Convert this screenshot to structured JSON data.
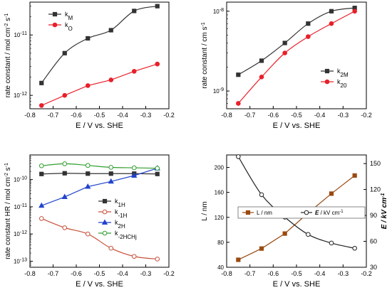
{
  "chart_data": [
    {
      "type": "line",
      "xlabel": "E / V vs. SHE",
      "ylabel": "rate constant / mol cm-2 s-1",
      "yscale": "log",
      "xlim": [
        -0.8,
        -0.2
      ],
      "ylim": [
        6e-13,
        3.5e-11
      ],
      "xticks": [
        -0.8,
        -0.7,
        -0.6,
        -0.5,
        -0.4,
        -0.3,
        -0.2
      ],
      "yticks": [
        1e-12,
        1e-11
      ],
      "legend": "top-left",
      "series": [
        {
          "name": "kM",
          "color": "#333333",
          "marker": "square",
          "smooth": true,
          "x": [
            -0.75,
            -0.65,
            -0.55,
            -0.45,
            -0.35,
            -0.25
          ],
          "y": [
            1.6e-12,
            5e-12,
            8.8e-12,
            1.2e-11,
            2.5e-11,
            3e-11
          ]
        },
        {
          "name": "kO",
          "color": "#e8202a",
          "marker": "circle",
          "smooth": false,
          "x": [
            -0.75,
            -0.65,
            -0.55,
            -0.45,
            -0.35,
            -0.25
          ],
          "y": [
            6.8e-13,
            1e-12,
            1.45e-12,
            1.8e-12,
            2.5e-12,
            3.3e-12
          ]
        }
      ]
    },
    {
      "type": "line",
      "xlabel": "E / V vs. SHE",
      "ylabel": "rate constant  / cm s-1",
      "yscale": "log",
      "xlim": [
        -0.8,
        -0.2
      ],
      "ylim": [
        6e-10,
        1.3e-08
      ],
      "xticks": [
        -0.8,
        -0.7,
        -0.6,
        -0.5,
        -0.4,
        -0.3,
        -0.2
      ],
      "yticks": [
        1e-09,
        1e-08
      ],
      "legend": "bottom-right",
      "series": [
        {
          "name": "k2M",
          "color": "#333333",
          "marker": "square",
          "smooth": true,
          "x": [
            -0.75,
            -0.65,
            -0.55,
            -0.45,
            -0.35,
            -0.25
          ],
          "y": [
            1.6e-09,
            2.4e-09,
            4e-09,
            7e-09,
            1e-08,
            1.1e-08
          ]
        },
        {
          "name": "k20",
          "color": "#e8202a",
          "marker": "circle",
          "smooth": true,
          "x": [
            -0.75,
            -0.65,
            -0.55,
            -0.45,
            -0.35,
            -0.25
          ],
          "y": [
            7e-10,
            1.5e-09,
            3e-09,
            4.8e-09,
            7e-09,
            1e-08
          ]
        }
      ]
    },
    {
      "type": "line",
      "xlabel": "E / V vs. SHE",
      "ylabel": "rate constant HR / mol cm-2 s-1",
      "yscale": "log",
      "xlim": [
        -0.8,
        -0.2
      ],
      "ylim": [
        6e-14,
        8e-10
      ],
      "xticks": [
        -0.8,
        -0.7,
        -0.6,
        -0.5,
        -0.4,
        -0.3,
        -0.2
      ],
      "yticks": [
        1e-13,
        1e-12,
        1e-11,
        1e-10
      ],
      "legend": "right",
      "series": [
        {
          "name": "k1H",
          "color": "#333333",
          "marker": "square",
          "smooth": false,
          "x": [
            -0.75,
            -0.65,
            -0.55,
            -0.45,
            -0.35,
            -0.25
          ],
          "y": [
            1.6e-10,
            1.7e-10,
            1.65e-10,
            1.65e-10,
            1.65e-10,
            1.6e-10
          ]
        },
        {
          "name": "k-1H",
          "color": "#c8503a",
          "marker": "circle-open",
          "smooth": true,
          "x": [
            -0.75,
            -0.65,
            -0.55,
            -0.45,
            -0.35,
            -0.25
          ],
          "y": [
            3.7e-12,
            1.7e-12,
            1e-12,
            3e-13,
            1.5e-13,
            1.2e-13
          ]
        },
        {
          "name": "k2H",
          "color": "#2244cc",
          "marker": "triangle",
          "smooth": false,
          "x": [
            -0.75,
            -0.65,
            -0.55,
            -0.45,
            -0.35,
            -0.25
          ],
          "y": [
            1.1e-11,
            2.3e-11,
            5.5e-11,
            8.5e-11,
            1.4e-10,
            2.6e-10
          ]
        },
        {
          "name": "k-2HCHj",
          "color": "#2e9e2e",
          "marker": "circle-open",
          "smooth": true,
          "x": [
            -0.75,
            -0.65,
            -0.55,
            -0.45,
            -0.35,
            -0.25
          ],
          "y": [
            3.2e-10,
            3.8e-10,
            3.3e-10,
            2.8e-10,
            2.7e-10,
            2.6e-10
          ]
        }
      ]
    },
    {
      "type": "line",
      "xlabel": "E / V vs. SHE",
      "ylabel": "L / nm",
      "y2label": "E / kV cm-1",
      "xlim": [
        -0.8,
        -0.2
      ],
      "ylim": [
        40,
        220
      ],
      "y2lim": [
        30,
        160
      ],
      "xticks": [
        -0.8,
        -0.7,
        -0.6,
        -0.5,
        -0.4,
        -0.3,
        -0.2
      ],
      "yticks": [
        40,
        80,
        120,
        160,
        200
      ],
      "y2ticks": [
        30,
        60,
        90,
        120,
        150
      ],
      "legend": "bottom",
      "series": [
        {
          "name": "L / nm",
          "color": "#9a4a10",
          "marker": "square",
          "axis": "left",
          "smooth": false,
          "x": [
            -0.75,
            -0.65,
            -0.55,
            -0.45,
            -0.35,
            -0.25
          ],
          "y": [
            52,
            70,
            94,
            127,
            158,
            187
          ]
        },
        {
          "name": "E / kV cm-1",
          "color": "#222222",
          "marker": "circle-open",
          "axis": "right",
          "smooth": true,
          "x": [
            -0.75,
            -0.65,
            -0.55,
            -0.45,
            -0.35,
            -0.25
          ],
          "y": [
            158,
            114,
            88,
            68,
            58,
            52
          ]
        }
      ]
    }
  ]
}
